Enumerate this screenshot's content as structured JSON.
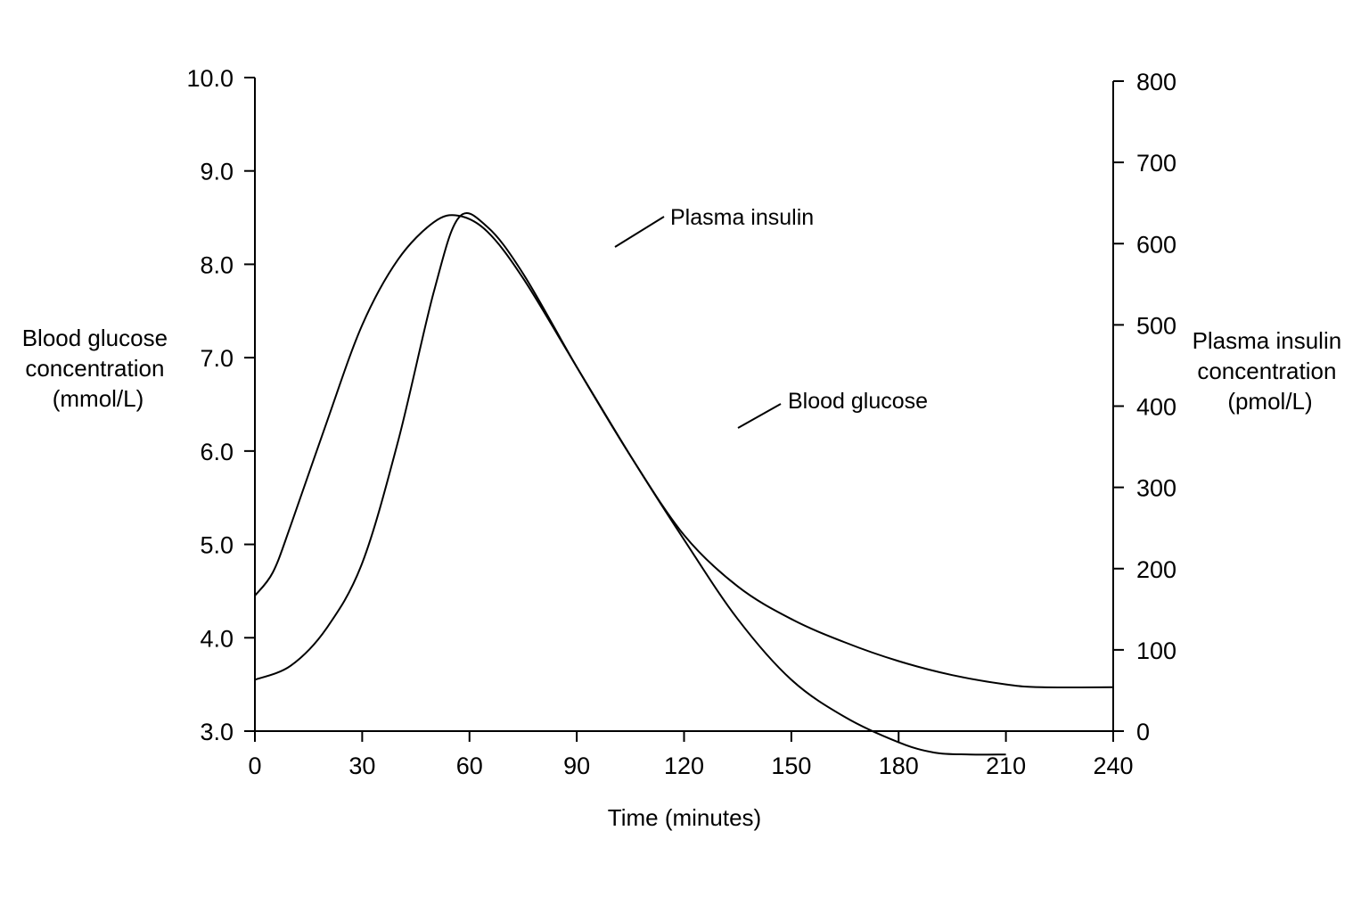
{
  "chart_data": {
    "type": "line",
    "title": "",
    "xlabel": "Time (minutes)",
    "ylabel_left": [
      "Blood glucose",
      "concentration",
      "(mmol/L)"
    ],
    "ylabel_right": [
      "Plasma insulin",
      "concentration",
      "(pmol/L)"
    ],
    "x_ticks": [
      0,
      30,
      60,
      90,
      120,
      150,
      180,
      210,
      240
    ],
    "x_tick_labels": [
      "0",
      "30",
      "60",
      "90",
      "120",
      "150",
      "180",
      "210",
      "240"
    ],
    "xlim": [
      0,
      240
    ],
    "y_left_ticks": [
      3.0,
      4.0,
      5.0,
      6.0,
      7.0,
      8.0,
      9.0,
      10.0
    ],
    "y_left_tick_labels": [
      "3.0",
      "4.0",
      "5.0",
      "6.0",
      "7.0",
      "8.0",
      "9.0",
      "10.0"
    ],
    "ylim_left": [
      3.0,
      10.0
    ],
    "y_right_ticks": [
      0,
      100,
      200,
      300,
      400,
      500,
      600,
      700,
      800
    ],
    "y_right_tick_labels": [
      "0",
      "100",
      "200",
      "300",
      "400",
      "500",
      "600",
      "700",
      "800"
    ],
    "ylim_right": [
      0,
      800
    ],
    "grid": false,
    "legend": "none",
    "series": [
      {
        "name": "Blood glucose",
        "axis": "left",
        "x": [
          0,
          10,
          20,
          30,
          40,
          50,
          57,
          65,
          75,
          90,
          105,
          120,
          135,
          150,
          165,
          180,
          195,
          210,
          220,
          240
        ],
        "y": [
          3.55,
          3.7,
          4.1,
          4.8,
          6.1,
          7.7,
          8.5,
          8.4,
          7.9,
          6.9,
          5.95,
          5.1,
          4.55,
          4.2,
          3.95,
          3.75,
          3.6,
          3.5,
          3.47,
          3.47
        ]
      },
      {
        "name": "Plasma insulin",
        "axis": "left",
        "x": [
          0,
          5,
          10,
          20,
          30,
          40,
          50,
          57,
          65,
          75,
          90,
          105,
          120,
          135,
          150,
          165,
          180,
          190,
          200,
          210
        ],
        "y": [
          4.45,
          4.7,
          5.2,
          6.3,
          7.35,
          8.05,
          8.45,
          8.52,
          8.35,
          7.85,
          6.9,
          5.95,
          5.05,
          4.2,
          3.55,
          3.15,
          2.88,
          2.77,
          2.75,
          2.75
        ]
      }
    ],
    "annotations": [
      "Plasma insulin",
      "Blood glucose"
    ]
  }
}
